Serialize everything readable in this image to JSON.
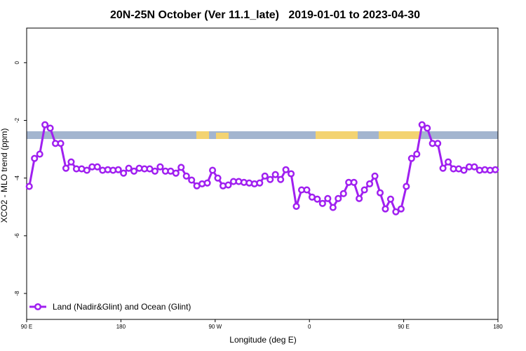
{
  "chart_data": {
    "type": "line",
    "title": "20N-25N October (Ver 11.1_late)   2019-01-01 to 2023-04-30",
    "x_label": "Longitude (deg E)",
    "y_label": "XCO2 - MLO trend (ppm)",
    "xlim": [
      90,
      540
    ],
    "ylim": [
      -8.9,
      1.2
    ],
    "xticks": [
      {
        "value": 90,
        "label": "90 E"
      },
      180,
      {
        "value": 270,
        "label": "90 W"
      },
      {
        "value": 360,
        "label": "0"
      },
      {
        "value": 450,
        "label": "90 E"
      },
      {
        "value": 540,
        "label": "180"
      }
    ],
    "yticks": [
      0,
      -2,
      -4,
      -6,
      -8
    ],
    "legend": "bottom-left",
    "x": [
      92.5,
      97.5,
      102.5,
      107.5,
      112.5,
      117.5,
      122.5,
      127.5,
      132.5,
      137.5,
      142.5,
      147.5,
      152.5,
      157.5,
      162.5,
      167.5,
      172.5,
      177.5,
      182.5,
      187.5,
      192.5,
      197.5,
      202.5,
      207.5,
      212.5,
      217.5,
      222.5,
      227.5,
      232.5,
      237.5,
      242.5,
      247.5,
      252.5,
      257.5,
      262.5,
      267.5,
      272.5,
      277.5,
      282.5,
      287.5,
      292.5,
      297.5,
      302.5,
      307.5,
      312.5,
      317.5,
      322.5,
      327.5,
      332.5,
      337.5,
      342.5,
      347.5,
      352.5,
      357.5,
      362.5,
      367.5,
      372.5,
      377.5,
      382.5,
      387.5,
      392.5,
      397.5,
      402.5,
      407.5,
      412.5,
      417.5,
      422.5,
      427.5,
      432.5,
      437.5,
      442.5,
      447.5,
      452.5,
      457.5,
      462.5,
      467.5,
      472.5,
      477.5,
      482.5,
      487.5,
      492.5,
      497.5,
      502.5,
      507.5,
      512.5,
      517.5,
      522.5,
      527.5,
      532.5,
      537.5
    ],
    "series": [
      {
        "name": "Land (Nadir&Glint) and Ocean (Glint)",
        "color": "#a020f0",
        "values": [
          -4.29,
          -3.32,
          -3.17,
          -2.15,
          -2.27,
          -2.8,
          -2.8,
          -3.66,
          -3.44,
          -3.68,
          -3.68,
          -3.73,
          -3.61,
          -3.61,
          -3.73,
          -3.71,
          -3.73,
          -3.71,
          -3.83,
          -3.66,
          -3.76,
          -3.66,
          -3.68,
          -3.68,
          -3.76,
          -3.61,
          -3.76,
          -3.76,
          -3.83,
          -3.63,
          -3.93,
          -4.07,
          -4.27,
          -4.2,
          -4.17,
          -3.73,
          -4.0,
          -4.27,
          -4.24,
          -4.12,
          -4.12,
          -4.15,
          -4.17,
          -4.2,
          -4.17,
          -3.93,
          -4.05,
          -3.88,
          -4.05,
          -3.71,
          -3.85,
          -4.98,
          -4.41,
          -4.41,
          -4.66,
          -4.73,
          -4.88,
          -4.71,
          -5.02,
          -4.71,
          -4.54,
          -4.15,
          -4.15,
          -4.71,
          -4.41,
          -4.2,
          -3.93,
          -4.51,
          -5.07,
          -4.73,
          -5.17,
          -5.07,
          -4.29,
          -3.32,
          -3.17,
          -2.15,
          -2.27,
          -2.8,
          -2.8,
          -3.66,
          -3.44,
          -3.68,
          -3.68,
          -3.73,
          -3.61,
          -3.61,
          -3.73,
          -3.71,
          -3.73,
          -3.71
        ]
      }
    ]
  }
}
